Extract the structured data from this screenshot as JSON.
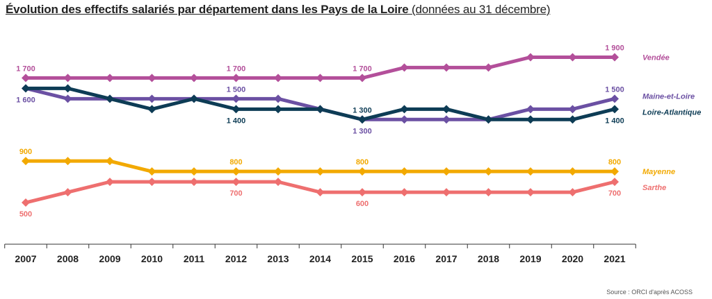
{
  "chart_data": {
    "type": "line",
    "title": "Évolution des effectifs salariés par département dans les Pays de la Loire",
    "subtitle": "(données au 31 décembre)",
    "source": "Source : ORCI d'après ACOSS",
    "x": [
      "2007",
      "2008",
      "2009",
      "2010",
      "2011",
      "2012",
      "2013",
      "2014",
      "2015",
      "2016",
      "2017",
      "2018",
      "2019",
      "2020",
      "2021"
    ],
    "ylim": [
      300,
      2050
    ],
    "grid": false,
    "legend_placement": "right",
    "series": [
      {
        "name": "Vendée",
        "color": "#B34F9A",
        "values": [
          1700,
          1700,
          1700,
          1700,
          1700,
          1700,
          1700,
          1700,
          1700,
          1800,
          1800,
          1800,
          1900,
          1900,
          1900
        ]
      },
      {
        "name": "Maine-et-Loire",
        "color": "#6B50A3",
        "values": [
          1600,
          1500,
          1500,
          1500,
          1500,
          1500,
          1500,
          1400,
          1300,
          1300,
          1300,
          1300,
          1400,
          1400,
          1500
        ]
      },
      {
        "name": "Loire-Atlantique",
        "color": "#0D3C55",
        "values": [
          1600,
          1600,
          1500,
          1400,
          1500,
          1400,
          1400,
          1400,
          1300,
          1400,
          1400,
          1300,
          1300,
          1300,
          1400
        ]
      },
      {
        "name": "Mayenne",
        "color": "#F2A900",
        "values": [
          900,
          900,
          900,
          800,
          800,
          800,
          800,
          800,
          800,
          800,
          800,
          800,
          800,
          800,
          800
        ]
      },
      {
        "name": "Sarthe",
        "color": "#EE6F6F",
        "values": [
          500,
          600,
          700,
          700,
          700,
          700,
          700,
          600,
          600,
          600,
          600,
          600,
          600,
          600,
          700
        ]
      }
    ],
    "data_labels": [
      {
        "series": 0,
        "index": 0,
        "text": "1 700",
        "pos": "above"
      },
      {
        "series": 0,
        "index": 5,
        "text": "1 700",
        "pos": "above"
      },
      {
        "series": 0,
        "index": 8,
        "text": "1 700",
        "pos": "above"
      },
      {
        "series": 0,
        "index": 14,
        "text": "1 900",
        "pos": "above"
      },
      {
        "series": 1,
        "index": 0,
        "text": "1 600",
        "pos": "below"
      },
      {
        "series": 1,
        "index": 5,
        "text": "1 500",
        "pos": "above"
      },
      {
        "series": 1,
        "index": 8,
        "text": "1 300",
        "pos": "below"
      },
      {
        "series": 1,
        "index": 14,
        "text": "1 500",
        "pos": "above"
      },
      {
        "series": 2,
        "index": 5,
        "text": "1 400",
        "pos": "below"
      },
      {
        "series": 2,
        "index": 8,
        "text": "1 300",
        "pos": "above"
      },
      {
        "series": 2,
        "index": 14,
        "text": "1 400",
        "pos": "below"
      },
      {
        "series": 3,
        "index": 0,
        "text": "900",
        "pos": "above"
      },
      {
        "series": 3,
        "index": 5,
        "text": "800",
        "pos": "above"
      },
      {
        "series": 3,
        "index": 8,
        "text": "800",
        "pos": "above"
      },
      {
        "series": 3,
        "index": 14,
        "text": "800",
        "pos": "above"
      },
      {
        "series": 4,
        "index": 0,
        "text": "500",
        "pos": "below"
      },
      {
        "series": 4,
        "index": 5,
        "text": "700",
        "pos": "below"
      },
      {
        "series": 4,
        "index": 8,
        "text": "600",
        "pos": "below"
      },
      {
        "series": 4,
        "index": 14,
        "text": "700",
        "pos": "below"
      }
    ]
  }
}
